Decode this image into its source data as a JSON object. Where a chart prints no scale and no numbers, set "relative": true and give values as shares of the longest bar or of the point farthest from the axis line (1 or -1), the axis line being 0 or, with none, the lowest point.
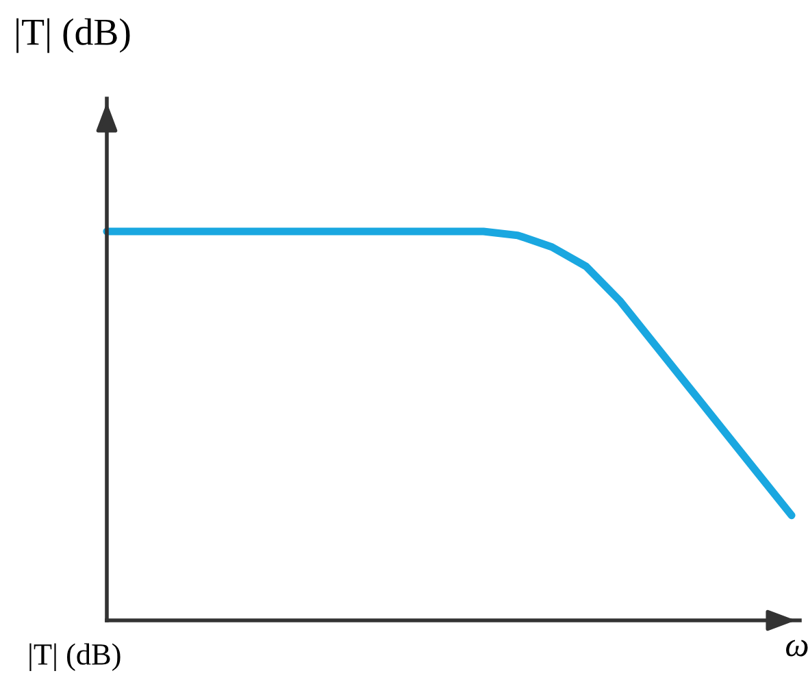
{
  "chart_data": {
    "type": "line",
    "relative": true,
    "ylabel": "|T| (dB)",
    "xlabel": "ω",
    "categories": [
      null,
      null,
      null,
      null,
      null,
      null,
      null,
      null,
      null,
      null,
      null,
      null,
      null,
      null,
      null,
      null,
      null,
      null,
      null,
      null,
      null
    ],
    "series": [
      {
        "color": "#1aa7e0",
        "values": [
          1,
          1,
          1,
          1,
          1,
          1,
          1,
          1,
          1,
          1,
          1,
          1,
          0.99,
          0.96,
          0.91,
          0.82,
          0.71,
          0.6,
          0.49,
          0.38,
          0.27
        ]
      }
    ],
    "annotations": [
      "|T| (dB)"
    ]
  }
}
